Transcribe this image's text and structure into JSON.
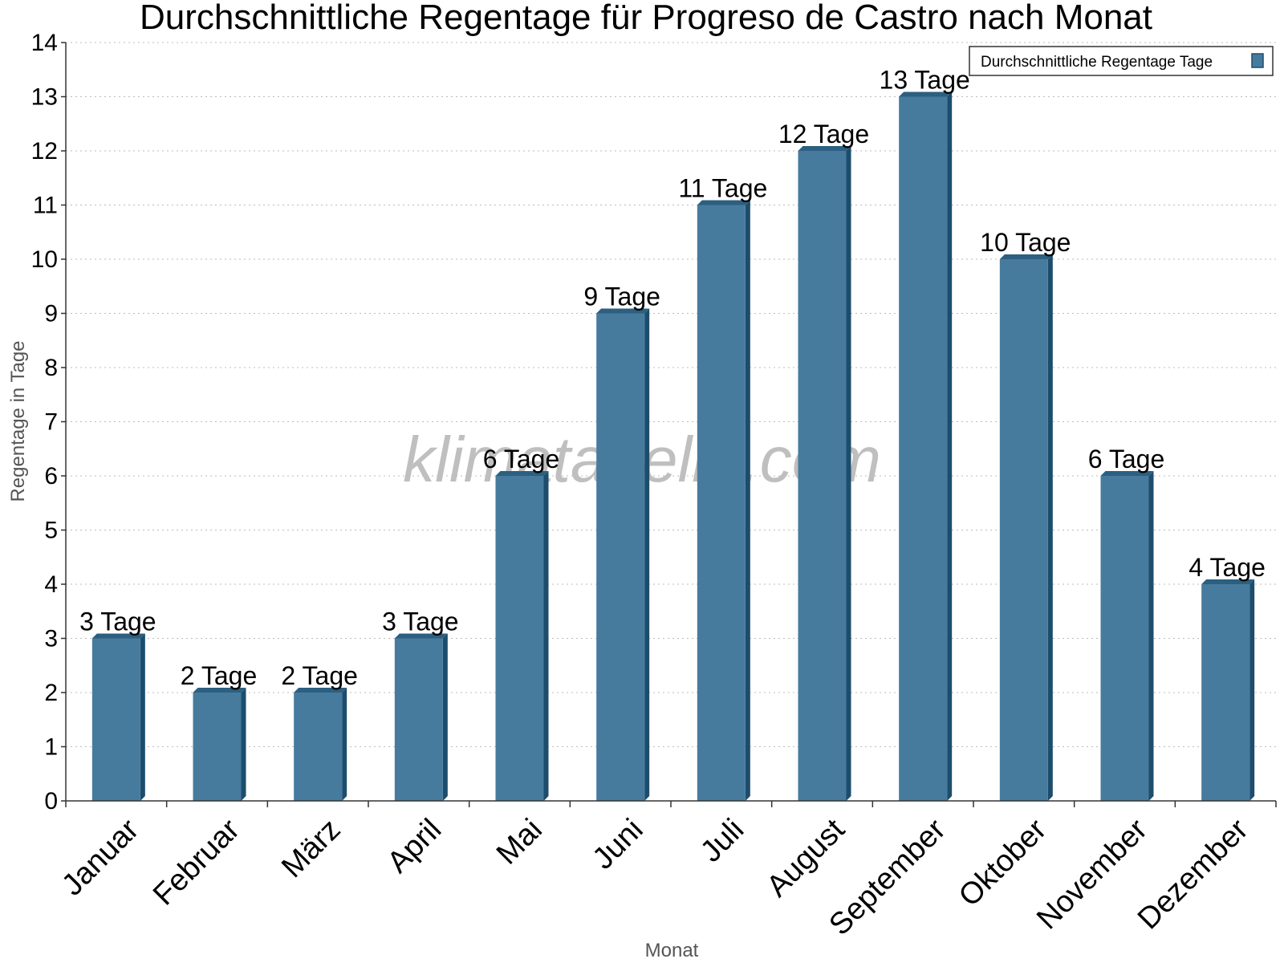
{
  "chart_data": {
    "type": "bar",
    "title": "Durchschnittliche Regentage für Progreso de Castro nach Monat",
    "xlabel": "Monat",
    "ylabel": "Regentage in Tage",
    "categories": [
      "Januar",
      "Februar",
      "März",
      "April",
      "Mai",
      "Juni",
      "Juli",
      "August",
      "September",
      "Oktober",
      "November",
      "Dezember"
    ],
    "series": [
      {
        "name": "Durchschnittliche Regentage Tage",
        "values": [
          3,
          2,
          2,
          3,
          6,
          9,
          11,
          12,
          13,
          10,
          6,
          4
        ],
        "value_labels": [
          "3 Tage",
          "2 Tage",
          "2 Tage",
          "3 Tage",
          "6 Tage",
          "9 Tage",
          "11 Tage",
          "12 Tage",
          "13 Tage",
          "10 Tage",
          "6 Tage",
          "4 Tage"
        ]
      }
    ],
    "ylim": [
      0,
      14
    ],
    "yticks": [
      "0",
      "1",
      "2",
      "3",
      "4",
      "5",
      "6",
      "7",
      "8",
      "9",
      "10",
      "11",
      "12",
      "13",
      "14"
    ],
    "grid": true,
    "legend_position": "top-right",
    "watermark": "klimatabelle.com",
    "colors": {
      "bar_face": "#467b9d",
      "bar_side": "#1d4d6c",
      "bar_top": "#2c5f80",
      "grid": "#bbbbbb",
      "axis": "#333333",
      "text": "#000000",
      "axis_title": "#555555",
      "watermark": "#bfbfbf"
    }
  }
}
